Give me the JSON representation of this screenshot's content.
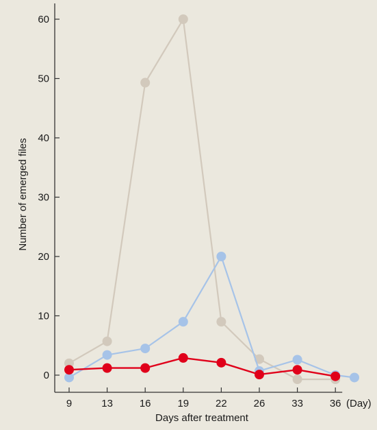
{
  "colors": {
    "background": "#ebe8de",
    "axis": "#333333",
    "series_beige": "#d2c9bc",
    "series_blue": "#a6c3e8",
    "series_red": "#e0001a"
  },
  "chart_data": {
    "type": "line",
    "title": "",
    "xlabel": "Days after treatment",
    "ylabel": "Number of emerged files",
    "x_unit_label": "(Day)",
    "categories": [
      "9",
      "13",
      "16",
      "19",
      "22",
      "26",
      "33",
      "36"
    ],
    "y_ticks": [
      0,
      10,
      20,
      30,
      40,
      50,
      60
    ],
    "ylim": [
      -3,
      63
    ],
    "grid": false,
    "legend": "none",
    "series": [
      {
        "color": "#d2c9bc",
        "points": [
          [
            0,
            2
          ],
          [
            1,
            5.7
          ],
          [
            2,
            49.3
          ],
          [
            3,
            60
          ],
          [
            4,
            9
          ],
          [
            5,
            2.7
          ],
          [
            6,
            -0.7
          ],
          [
            7,
            -0.7
          ]
        ]
      },
      {
        "color": "#a6c3e8",
        "points": [
          [
            0,
            -0.4
          ],
          [
            1,
            3.4
          ],
          [
            2,
            4.5
          ],
          [
            3,
            9
          ],
          [
            4,
            20
          ],
          [
            5,
            0.7
          ],
          [
            6,
            2.6
          ],
          [
            7,
            0
          ],
          [
            7.5,
            -0.4
          ]
        ]
      },
      {
        "color": "#e0001a",
        "points": [
          [
            0,
            0.9
          ],
          [
            1,
            1.2
          ],
          [
            2,
            1.2
          ],
          [
            3,
            2.9
          ],
          [
            4,
            2.1
          ],
          [
            5,
            0.1
          ],
          [
            6,
            0.9
          ],
          [
            7,
            -0.2
          ]
        ]
      }
    ]
  }
}
